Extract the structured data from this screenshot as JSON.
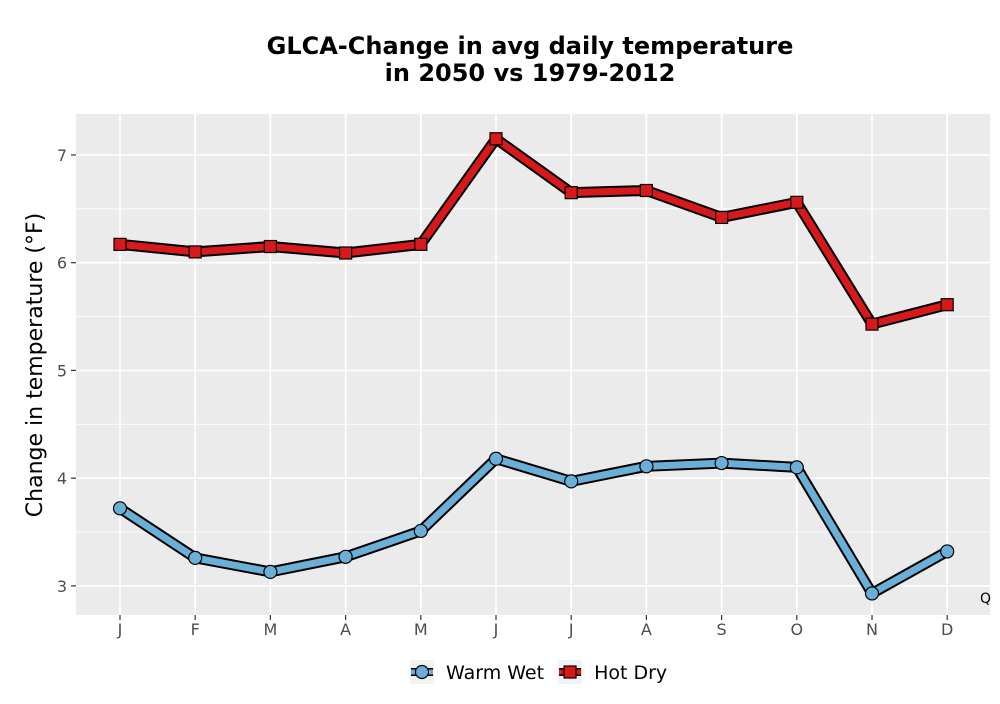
{
  "chart_data": {
    "type": "line",
    "title_lines": [
      "GLCA-Change in avg daily temperature",
      "in 2050 vs 1979-2012"
    ],
    "xlabel": "",
    "ylabel": "Change in temperature (°F)",
    "categories": [
      "J",
      "F",
      "M",
      "A",
      "M",
      "J",
      "J",
      "A",
      "S",
      "O",
      "N",
      "D"
    ],
    "ylim": [
      2.73,
      7.38
    ],
    "yticks": [
      3,
      4,
      5,
      6,
      7
    ],
    "grid": true,
    "legend_position": "bottom",
    "series": [
      {
        "name": "Warm Wet",
        "marker": "circle",
        "color": "#6baed6",
        "values": [
          3.72,
          3.26,
          3.13,
          3.27,
          3.51,
          4.18,
          3.97,
          4.11,
          4.14,
          4.1,
          2.93,
          3.32
        ]
      },
      {
        "name": "Hot Dry",
        "marker": "square",
        "color": "#d7191c",
        "values": [
          6.17,
          6.1,
          6.15,
          6.09,
          6.17,
          7.15,
          6.65,
          6.67,
          6.42,
          6.56,
          5.43,
          5.61
        ]
      }
    ],
    "corner_mark": "Q"
  },
  "colors": {
    "panel_background": "#ebebeb",
    "gridline": "#ffffff",
    "outline": "#000000"
  }
}
